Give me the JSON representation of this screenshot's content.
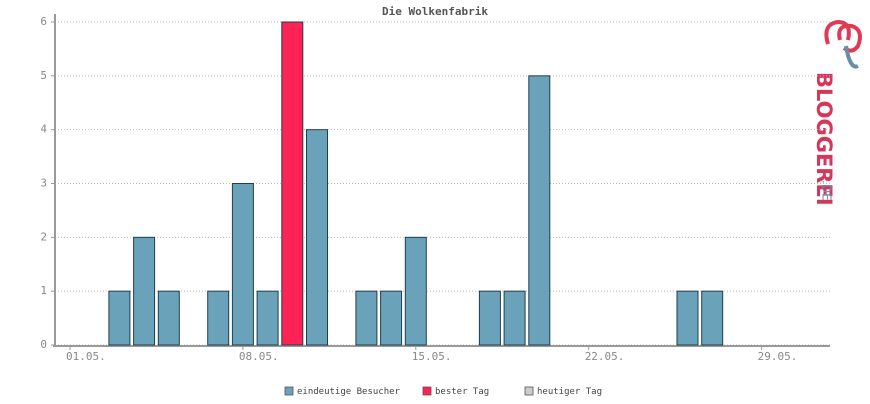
{
  "chart_data": {
    "type": "bar",
    "title": "Die Wolkenfabrik",
    "categories": [
      "01.05.",
      null,
      null,
      null,
      null,
      null,
      null,
      "08.05.",
      null,
      null,
      null,
      null,
      null,
      null,
      "15.05.",
      null,
      null,
      null,
      null,
      null,
      null,
      "22.05.",
      null,
      null,
      null,
      null,
      null,
      null,
      "29.05.",
      null,
      null
    ],
    "series": [
      {
        "name": "eindeutige Besucher",
        "color": "#6aa2ba",
        "values": [
          0,
          0,
          1,
          2,
          1,
          0,
          1,
          3,
          1,
          null,
          4,
          0,
          1,
          1,
          2,
          0,
          0,
          1,
          1,
          5,
          0,
          0,
          0,
          0,
          0,
          1,
          1,
          0,
          0,
          0,
          0
        ]
      },
      {
        "name": "bester Tag",
        "color": "#ff2255",
        "values": [
          null,
          null,
          null,
          null,
          null,
          null,
          null,
          null,
          null,
          6,
          null,
          null,
          null,
          null,
          null,
          null,
          null,
          null,
          null,
          null,
          null,
          null,
          null,
          null,
          null,
          null,
          null,
          null,
          null,
          null,
          null
        ]
      },
      {
        "name": "heutiger Tag",
        "color": "#cccccc",
        "values": [
          null,
          null,
          null,
          null,
          null,
          null,
          null,
          null,
          null,
          null,
          null,
          null,
          null,
          null,
          null,
          null,
          null,
          null,
          null,
          null,
          null,
          null,
          null,
          null,
          null,
          null,
          null,
          null,
          null,
          null,
          null
        ]
      }
    ],
    "ylim": [
      0,
      6
    ],
    "yticks": [
      0,
      1,
      2,
      3,
      4,
      5,
      6
    ],
    "grid": true,
    "legend": "bottom"
  },
  "branding": {
    "name": "BLOGGEREI",
    "tld": ".DE"
  }
}
